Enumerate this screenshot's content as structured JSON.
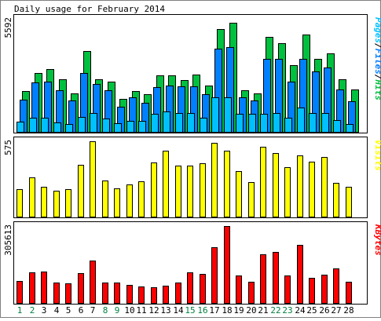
{
  "title": "Daily usage for February 2014",
  "days": [
    "1",
    "2",
    "3",
    "4",
    "5",
    "6",
    "7",
    "8",
    "9",
    "10",
    "11",
    "12",
    "13",
    "14",
    "15",
    "16",
    "17",
    "18",
    "19",
    "20",
    "21",
    "22",
    "23",
    "24",
    "25",
    "26",
    "27",
    "28"
  ],
  "weekend_days": [
    "1",
    "2",
    "8",
    "9",
    "15",
    "16",
    "22",
    "23"
  ],
  "colors": {
    "background": "#ffffff",
    "frame": "#000000",
    "panel_bg": "#ffffff",
    "hits": "#00c040",
    "files": "#0080ff",
    "pages": "#00c0ff",
    "visits": "#ffff00",
    "kbytes": "#ff0000",
    "weekday_label": "#000000",
    "weekend_label": "#008040"
  },
  "chart_data": [
    {
      "type": "bar",
      "name": "hits-files-pages",
      "axis_max_label": "5592",
      "ymax": 5592,
      "legend": [
        "Pages",
        "Files",
        "Hits"
      ],
      "categories": [
        "1",
        "2",
        "3",
        "4",
        "5",
        "6",
        "7",
        "8",
        "9",
        "10",
        "11",
        "12",
        "13",
        "14",
        "15",
        "16",
        "17",
        "18",
        "19",
        "20",
        "21",
        "22",
        "23",
        "24",
        "25",
        "26",
        "27",
        "28"
      ],
      "series": [
        {
          "name": "Hits",
          "values": [
            2000,
            2900,
            3100,
            2600,
            1900,
            4000,
            2600,
            2500,
            1650,
            2000,
            1850,
            2800,
            2800,
            2550,
            2850,
            2300,
            5100,
            5400,
            2050,
            1900,
            4700,
            4400,
            3300,
            4800,
            3600,
            3900,
            2600,
            2100
          ]
        },
        {
          "name": "Files",
          "values": [
            1600,
            2450,
            2500,
            2050,
            1550,
            2900,
            2350,
            2050,
            1250,
            1700,
            1450,
            2200,
            2300,
            2250,
            2250,
            1850,
            4100,
            4200,
            1700,
            1550,
            3600,
            3600,
            2500,
            3600,
            3000,
            3200,
            2100,
            1500
          ]
        },
        {
          "name": "Pages",
          "values": [
            500,
            700,
            700,
            450,
            400,
            750,
            950,
            650,
            430,
            550,
            550,
            900,
            1000,
            950,
            950,
            700,
            1700,
            1700,
            900,
            900,
            900,
            950,
            700,
            1200,
            950,
            950,
            600,
            400
          ]
        }
      ]
    },
    {
      "type": "bar",
      "name": "visits",
      "axis_max_label": "575",
      "ymax": 575,
      "legend": [
        "Visits"
      ],
      "categories": [
        "1",
        "2",
        "3",
        "4",
        "5",
        "6",
        "7",
        "8",
        "9",
        "10",
        "11",
        "12",
        "13",
        "14",
        "15",
        "16",
        "17",
        "18",
        "19",
        "20",
        "21",
        "22",
        "23",
        "24",
        "25",
        "26",
        "27",
        "28"
      ],
      "series": [
        {
          "name": "Visits",
          "values": [
            208,
            300,
            230,
            195,
            208,
            395,
            575,
            277,
            215,
            245,
            268,
            415,
            505,
            387,
            390,
            405,
            565,
            505,
            350,
            265,
            535,
            485,
            375,
            465,
            420,
            455,
            260,
            225
          ]
        }
      ]
    },
    {
      "type": "bar",
      "name": "kbytes",
      "axis_max_label": "305613",
      "ymax": 305613,
      "legend": [
        "KBytes"
      ],
      "categories": [
        "1",
        "2",
        "3",
        "4",
        "5",
        "6",
        "7",
        "8",
        "9",
        "10",
        "11",
        "12",
        "13",
        "14",
        "15",
        "16",
        "17",
        "18",
        "19",
        "20",
        "21",
        "22",
        "23",
        "24",
        "25",
        "26",
        "27",
        "28"
      ],
      "series": [
        {
          "name": "KBytes",
          "values": [
            86000,
            122000,
            125000,
            80000,
            77000,
            118000,
            168000,
            80000,
            82000,
            72000,
            67000,
            62000,
            68000,
            81000,
            122000,
            116000,
            222000,
            305613,
            110000,
            83000,
            193000,
            203000,
            108000,
            232000,
            99000,
            112000,
            137000,
            84000
          ]
        }
      ]
    }
  ]
}
